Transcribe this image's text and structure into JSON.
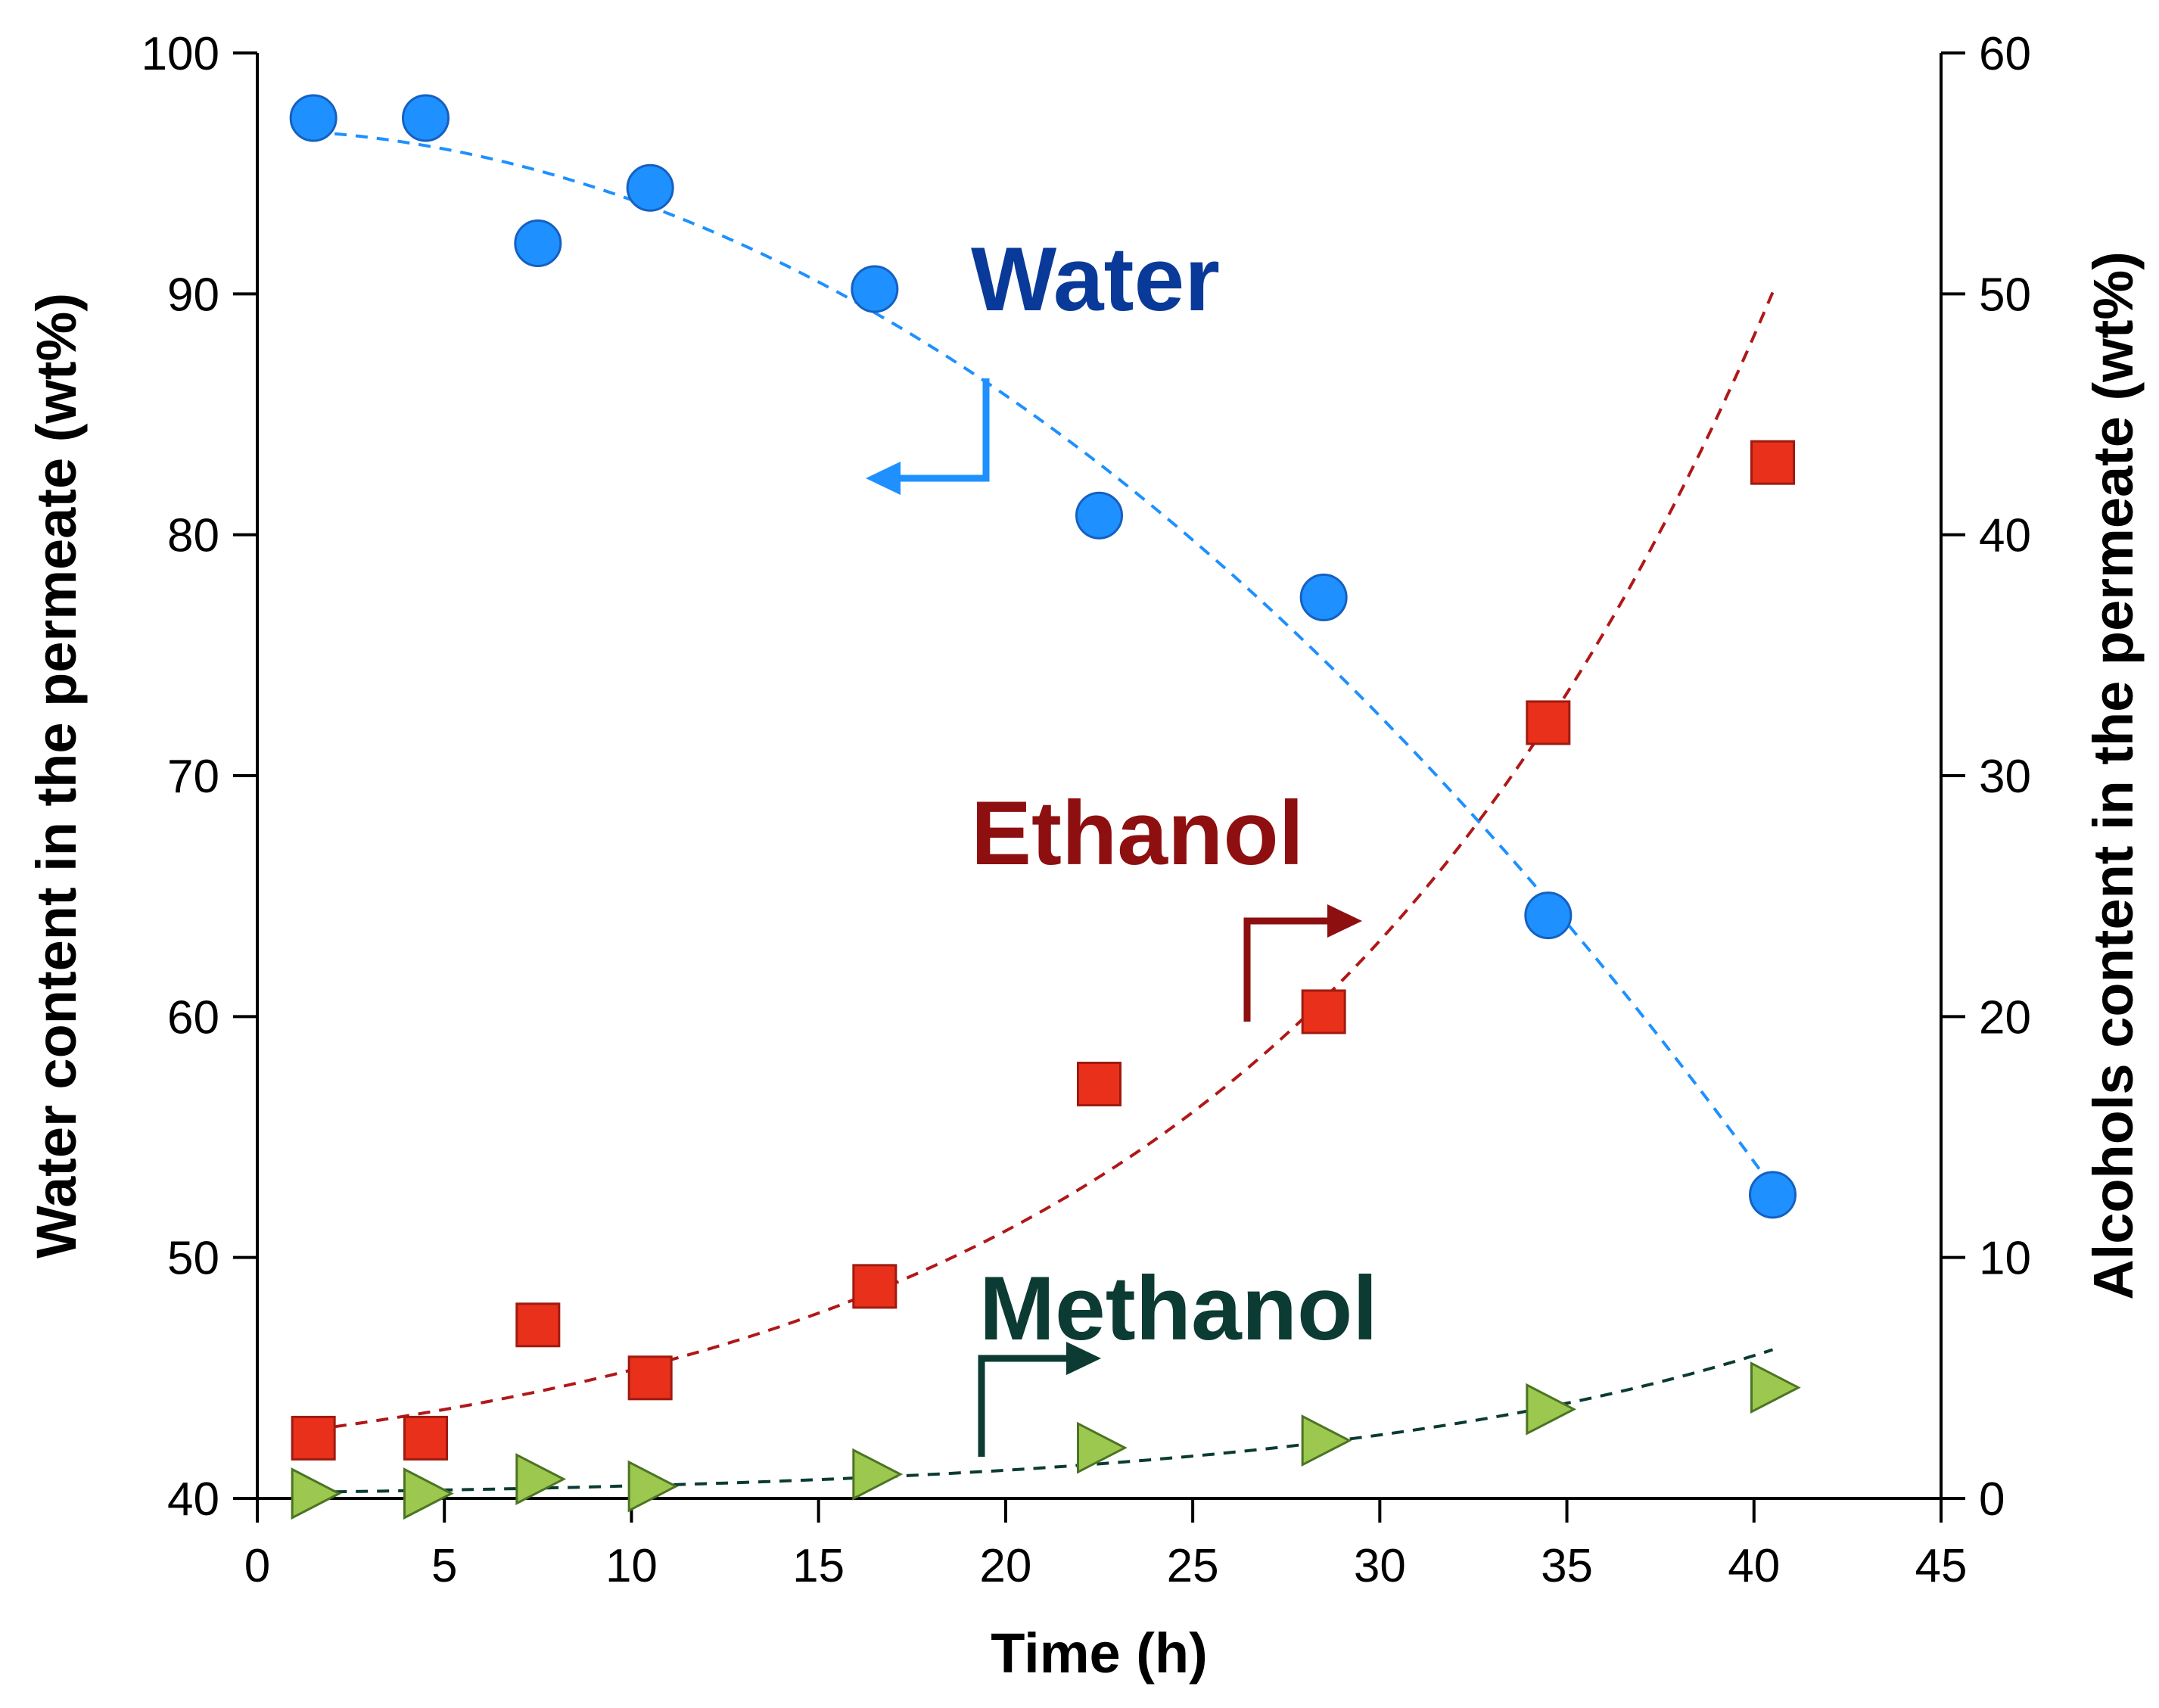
{
  "chart_data": {
    "type": "scatter",
    "title": "",
    "xlabel": "Time (h)",
    "ylabel": "Water content in the permeate (wt%)",
    "y2label": "Alcohols content in the permeate (wt%)",
    "xlim": [
      0,
      45
    ],
    "ylim": [
      40,
      100
    ],
    "y2lim": [
      0,
      60
    ],
    "xticks": [
      0,
      5,
      10,
      15,
      20,
      25,
      30,
      35,
      40,
      45
    ],
    "yticks": [
      40,
      50,
      60,
      70,
      80,
      90,
      100
    ],
    "y2ticks": [
      0,
      10,
      20,
      30,
      40,
      50,
      60
    ],
    "grid": false,
    "legend": "none",
    "series": [
      {
        "name": "Water",
        "axis": "left",
        "marker": "circle",
        "color": "#1e90ff",
        "label_color": "#0a3a99",
        "x": [
          1.5,
          4.5,
          7.5,
          10.5,
          16.5,
          22.5,
          28.5,
          34.5,
          40.5
        ],
        "y": [
          97.3,
          97.3,
          92.1,
          94.4,
          90.2,
          80.8,
          77.4,
          64.2,
          52.6
        ],
        "trend": "quadratic",
        "trend_color": "#1e90ff"
      },
      {
        "name": "Ethanol",
        "axis": "right",
        "marker": "square",
        "color": "#e8301a",
        "label_color": "#8e0f10",
        "x": [
          1.5,
          4.5,
          7.5,
          10.5,
          16.5,
          22.5,
          28.5,
          34.5,
          40.5
        ],
        "y": [
          2.5,
          2.5,
          7.2,
          5.0,
          8.8,
          17.2,
          20.2,
          32.2,
          43.0
        ],
        "trend": "exponential",
        "trend_color": "#b01818"
      },
      {
        "name": "Methanol",
        "axis": "right",
        "marker": "triangle-right",
        "color": "#9dc84f",
        "label_color": "#0b3b33",
        "x": [
          1.5,
          4.5,
          7.5,
          10.5,
          16.5,
          22.5,
          28.5,
          34.5,
          40.5
        ],
        "y": [
          0.2,
          0.2,
          0.8,
          0.5,
          1.0,
          2.1,
          2.4,
          3.7,
          4.6
        ],
        "trend": "exponential",
        "trend_color": "#0b3b33"
      }
    ],
    "annotations": [
      {
        "text": "Water",
        "points_to": "left axis"
      },
      {
        "text": "Ethanol",
        "points_to": "right axis"
      },
      {
        "text": "Methanol",
        "points_to": "right axis"
      }
    ]
  }
}
